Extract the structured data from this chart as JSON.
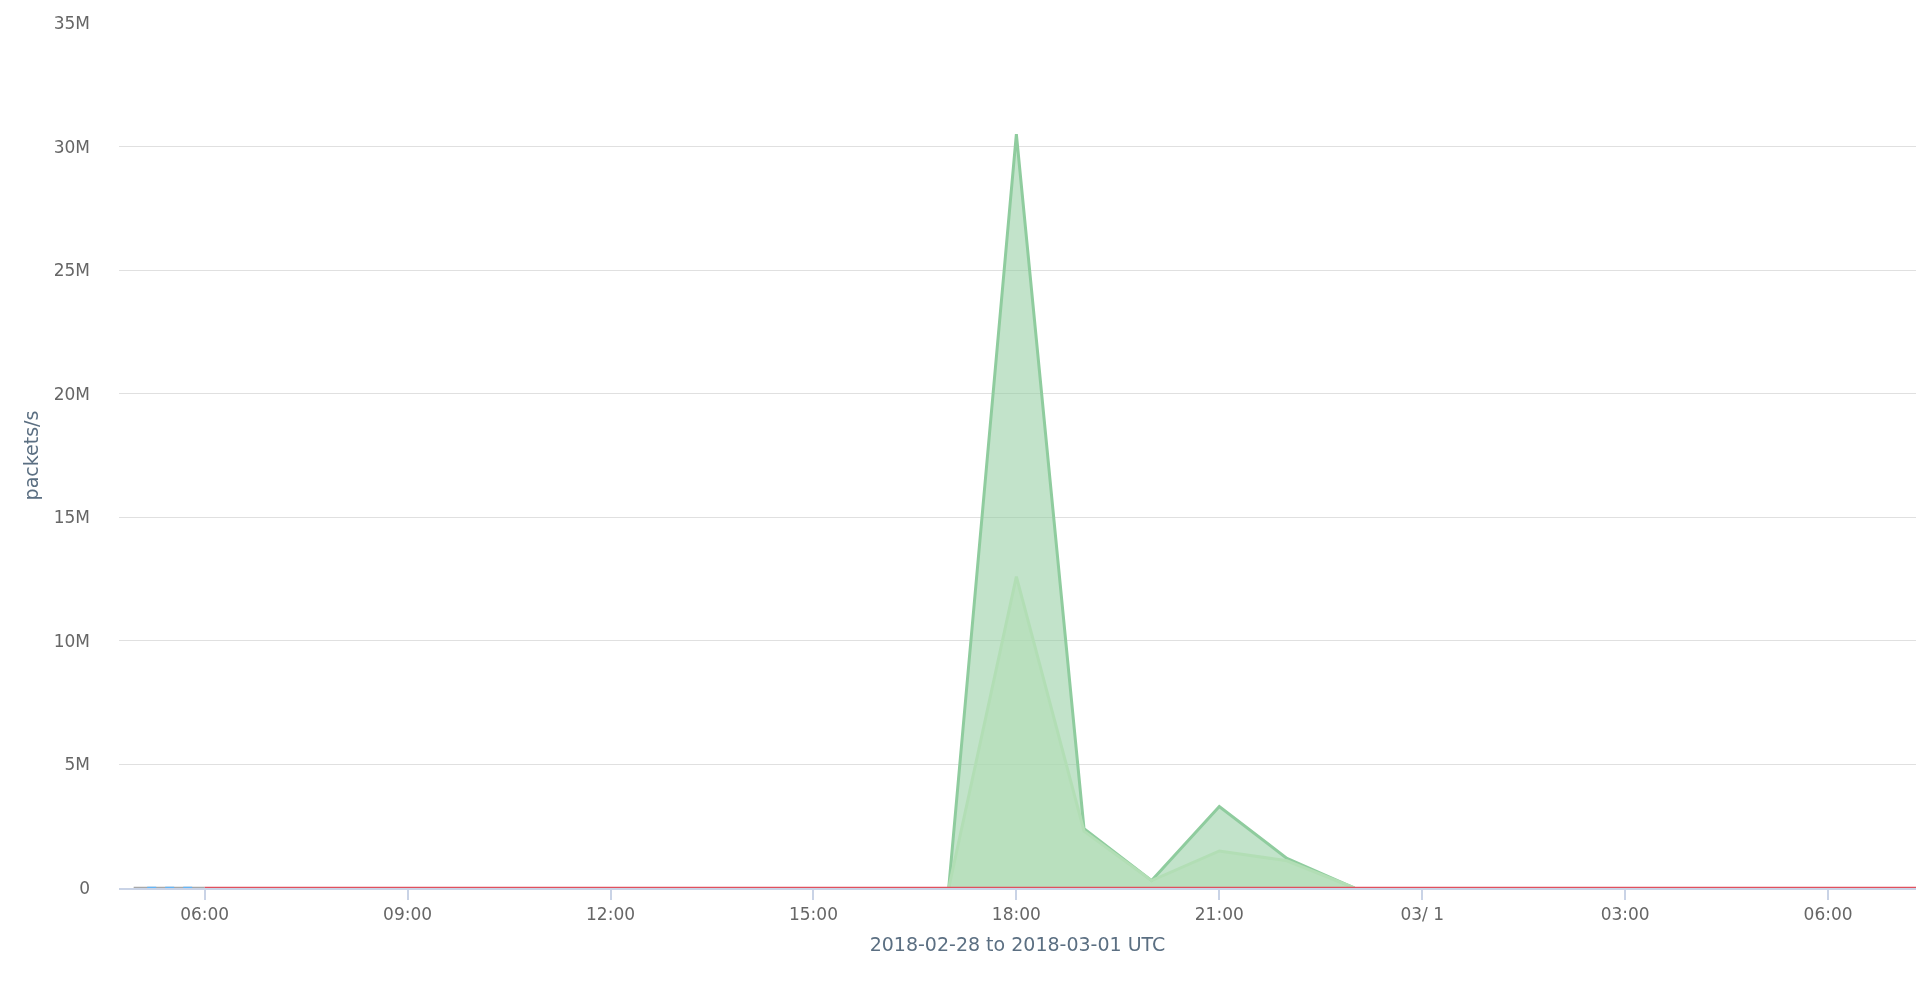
{
  "chart_data": {
    "type": "area",
    "xlabel": "2018-02-28 to 2018-03-01 UTC",
    "ylabel": "packets/s",
    "xlim": [
      "2018-02-28T04:44",
      "2018-03-01T07:18"
    ],
    "xticks": [
      {
        "value": "2018-02-28T06:00",
        "label": "06:00"
      },
      {
        "value": "2018-02-28T09:00",
        "label": "09:00"
      },
      {
        "value": "2018-02-28T12:00",
        "label": "12:00"
      },
      {
        "value": "2018-02-28T15:00",
        "label": "15:00"
      },
      {
        "value": "2018-02-28T18:00",
        "label": "18:00"
      },
      {
        "value": "2018-02-28T21:00",
        "label": "21:00"
      },
      {
        "value": "2018-03-01T00:00",
        "label": "03/ 1"
      },
      {
        "value": "2018-03-01T03:00",
        "label": "03:00"
      },
      {
        "value": "2018-03-01T06:00",
        "label": "06:00"
      }
    ],
    "ylim": [
      0,
      35000000
    ],
    "yticks": [
      0,
      {
        "value": 5000000,
        "label": "5M"
      },
      {
        "value": 10000000,
        "label": "10M"
      },
      {
        "value": 15000000,
        "label": "15M"
      },
      {
        "value": 20000000,
        "label": "20M"
      },
      {
        "value": 25000000,
        "label": "25M"
      },
      {
        "value": 30000000,
        "label": "30M"
      },
      {
        "value": 35000000,
        "label": "35M"
      }
    ],
    "grid": "y",
    "series": [
      {
        "color": "#8fcc9e",
        "x": [
          "2018-02-28T17:00",
          "2018-02-28T18:00",
          "2018-02-28T19:00",
          "2018-02-28T20:00",
          "2018-02-28T21:00",
          "2018-02-28T22:00",
          "2018-02-28T23:00"
        ],
        "values": [
          0,
          30500000,
          2400000,
          300000,
          3300000,
          1200000,
          0
        ]
      },
      {
        "color": "#b2deb5",
        "x": [
          "2018-02-28T17:00",
          "2018-02-28T18:00",
          "2018-02-28T19:00",
          "2018-02-28T20:00",
          "2018-02-28T21:00",
          "2018-02-28T22:00",
          "2018-02-28T23:00"
        ],
        "values": [
          0,
          12600000,
          2300000,
          300000,
          1500000,
          1100000,
          0
        ]
      },
      {
        "type": "line",
        "color": "#a8a8a8",
        "x": [
          "2018-02-28T04:57",
          "2018-02-28T06:00"
        ],
        "values": [
          0,
          0
        ]
      },
      {
        "type": "line",
        "color": "#64b5f6",
        "line_style": "dashed",
        "x": [
          "2018-02-28T05:09",
          "2018-02-28T05:55"
        ],
        "values": [
          0,
          0
        ]
      },
      {
        "type": "line",
        "color": "#e0505e",
        "x": [
          "2018-02-28T06:00",
          "2018-03-01T07:18"
        ],
        "values": [
          0,
          0
        ]
      }
    ]
  }
}
